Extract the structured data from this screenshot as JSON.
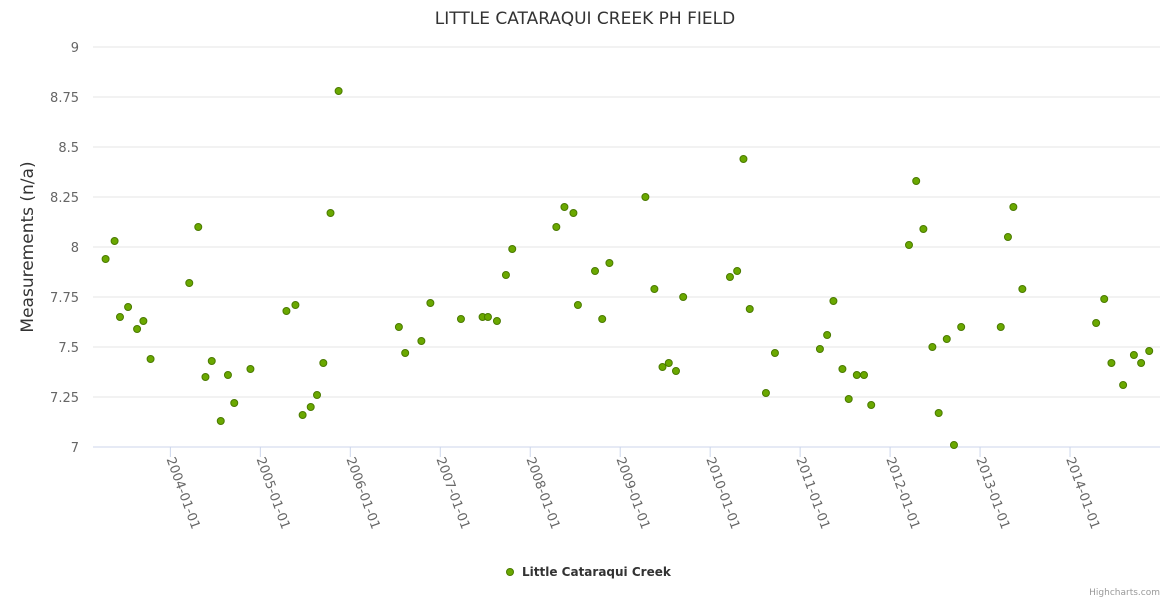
{
  "chart_data": {
    "type": "scatter",
    "title": "LITTLE CATARAQUI CREEK PH FIELD",
    "xlabel": "",
    "ylabel": "Measurements (n/a)",
    "x_unit": "decimal year",
    "xlim": [
      2003.14,
      2015.0
    ],
    "ylim": [
      7,
      9
    ],
    "yticks": [
      7,
      7.25,
      7.5,
      7.75,
      8,
      8.25,
      8.5,
      8.75,
      9
    ],
    "ytick_labels": [
      "7",
      "7.25",
      "7.5",
      "7.75",
      "8",
      "8.25",
      "8.5",
      "8.75",
      "9"
    ],
    "xticks": [
      2004,
      2005,
      2006,
      2007,
      2008,
      2009,
      2010,
      2011,
      2012,
      2013,
      2014
    ],
    "xtick_labels": [
      "2004-01-01",
      "2005-01-01",
      "2006-01-01",
      "2007-01-01",
      "2008-01-01",
      "2009-01-01",
      "2010-01-01",
      "2011-01-01",
      "2012-01-01",
      "2013-01-01",
      "2014-01-01"
    ],
    "grid": true,
    "legend_placement": "bottom-center",
    "series": [
      {
        "name": "Little Cataraqui Creek",
        "color": "#6aa800",
        "border_color": "#4a7a00",
        "x": [
          2003.28,
          2003.38,
          2003.44,
          2003.53,
          2003.63,
          2003.7,
          2003.78,
          2004.21,
          2004.31,
          2004.39,
          2004.46,
          2004.56,
          2004.64,
          2004.71,
          2004.89,
          2005.29,
          2005.39,
          2005.47,
          2005.56,
          2005.63,
          2005.7,
          2005.78,
          2005.87,
          2006.54,
          2006.61,
          2006.79,
          2006.89,
          2007.23,
          2007.47,
          2007.53,
          2007.63,
          2007.73,
          2007.8,
          2008.29,
          2008.38,
          2008.48,
          2008.53,
          2008.72,
          2008.8,
          2008.88,
          2009.28,
          2009.38,
          2009.47,
          2009.54,
          2009.62,
          2009.7,
          2010.22,
          2010.3,
          2010.37,
          2010.44,
          2010.62,
          2010.72,
          2011.22,
          2011.3,
          2011.37,
          2011.47,
          2011.54,
          2011.63,
          2011.71,
          2011.79,
          2012.21,
          2012.29,
          2012.37,
          2012.47,
          2012.54,
          2012.63,
          2012.71,
          2012.79,
          2013.23,
          2013.31,
          2013.37,
          2013.47,
          2014.29,
          2014.38,
          2014.46,
          2014.59,
          2014.71,
          2014.79,
          2014.88
        ],
        "y": [
          7.94,
          8.03,
          7.65,
          7.7,
          7.59,
          7.63,
          7.44,
          7.82,
          8.1,
          7.35,
          7.43,
          7.13,
          7.36,
          7.22,
          7.39,
          7.68,
          7.71,
          7.16,
          7.2,
          7.26,
          7.42,
          8.17,
          8.78,
          7.6,
          7.47,
          7.53,
          7.72,
          7.64,
          7.65,
          7.65,
          7.63,
          7.86,
          7.99,
          8.1,
          8.2,
          8.17,
          7.71,
          7.88,
          7.64,
          7.92,
          8.25,
          7.79,
          7.4,
          7.42,
          7.38,
          7.75,
          7.85,
          7.88,
          8.44,
          7.69,
          7.27,
          7.47,
          7.49,
          7.56,
          7.73,
          7.39,
          7.24,
          7.36,
          7.36,
          7.21,
          8.01,
          8.33,
          8.09,
          7.5,
          7.17,
          7.54,
          7.01,
          7.6,
          7.6,
          8.05,
          8.2,
          7.79,
          7.62,
          7.74,
          7.42,
          7.31,
          7.46,
          7.42,
          7.48
        ]
      }
    ]
  },
  "credits": "Highcharts.com"
}
